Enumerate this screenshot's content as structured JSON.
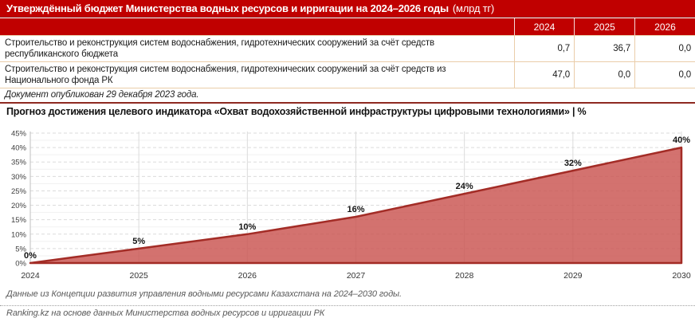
{
  "header": {
    "title": "Утверждённый бюджет Министерства водных ресурсов и ирригации на 2024–2026 годы",
    "unit": "(млрд тг)"
  },
  "table": {
    "year_columns": [
      "2024",
      "2025",
      "2026"
    ],
    "rows": [
      {
        "label": "Строительство и реконструкция систем водоснабжения, гидротехнических сооружений за счёт средств республиканского бюджета",
        "values": [
          "0,7",
          "36,7",
          "0,0"
        ]
      },
      {
        "label": "Строительство и реконструкция систем водоснабжения, гидротехнических сооружений за счёт средств из Национального фонда РК",
        "values": [
          "47,0",
          "0,0",
          "0,0"
        ]
      }
    ],
    "note": "Документ опубликован 29 декабря 2023 года."
  },
  "chart": {
    "title": "Прогноз достижения целевого индикатора «Охват водохозяйственной инфраструктуры цифровыми технологиями» | %"
  },
  "chart_data": {
    "type": "area",
    "title": "Прогноз достижения целевого индикатора «Охват водохозяйственной инфраструктуры цифровыми технологиями»",
    "unit": "%",
    "categories": [
      "2024",
      "2025",
      "2026",
      "2027",
      "2028",
      "2029",
      "2030"
    ],
    "values": [
      0,
      5,
      10,
      16,
      24,
      32,
      40
    ],
    "data_labels": [
      "0%",
      "5%",
      "10%",
      "16%",
      "24%",
      "32%",
      "40%"
    ],
    "ylim": [
      0,
      45
    ],
    "ytick_step": 5,
    "ytick_labels": [
      "0%",
      "5%",
      "10%",
      "15%",
      "20%",
      "25%",
      "30%",
      "35%",
      "40%",
      "45%"
    ],
    "grid": true,
    "legend": "none",
    "colors": {
      "fill": "#C9534F",
      "line": "#A32C26",
      "grid": "#DBDBDB",
      "minor_grid": "#F1F1F1",
      "axis": "#BFBFBF",
      "tick_text": "#404040",
      "label_text": "#141414"
    }
  },
  "footer": {
    "source_note": "Данные из Концепции развития управления водными ресурсами Казахстана на 2024–2030 годы.",
    "credit": "Ranking.kz на основе данных Министерства водных ресурсов и ирригации РК"
  },
  "colors": {
    "header_bg": "#C00000",
    "table_border": "#EACDA9",
    "table_bottom_border": "#8E2A21",
    "footer_text": "#595959"
  }
}
